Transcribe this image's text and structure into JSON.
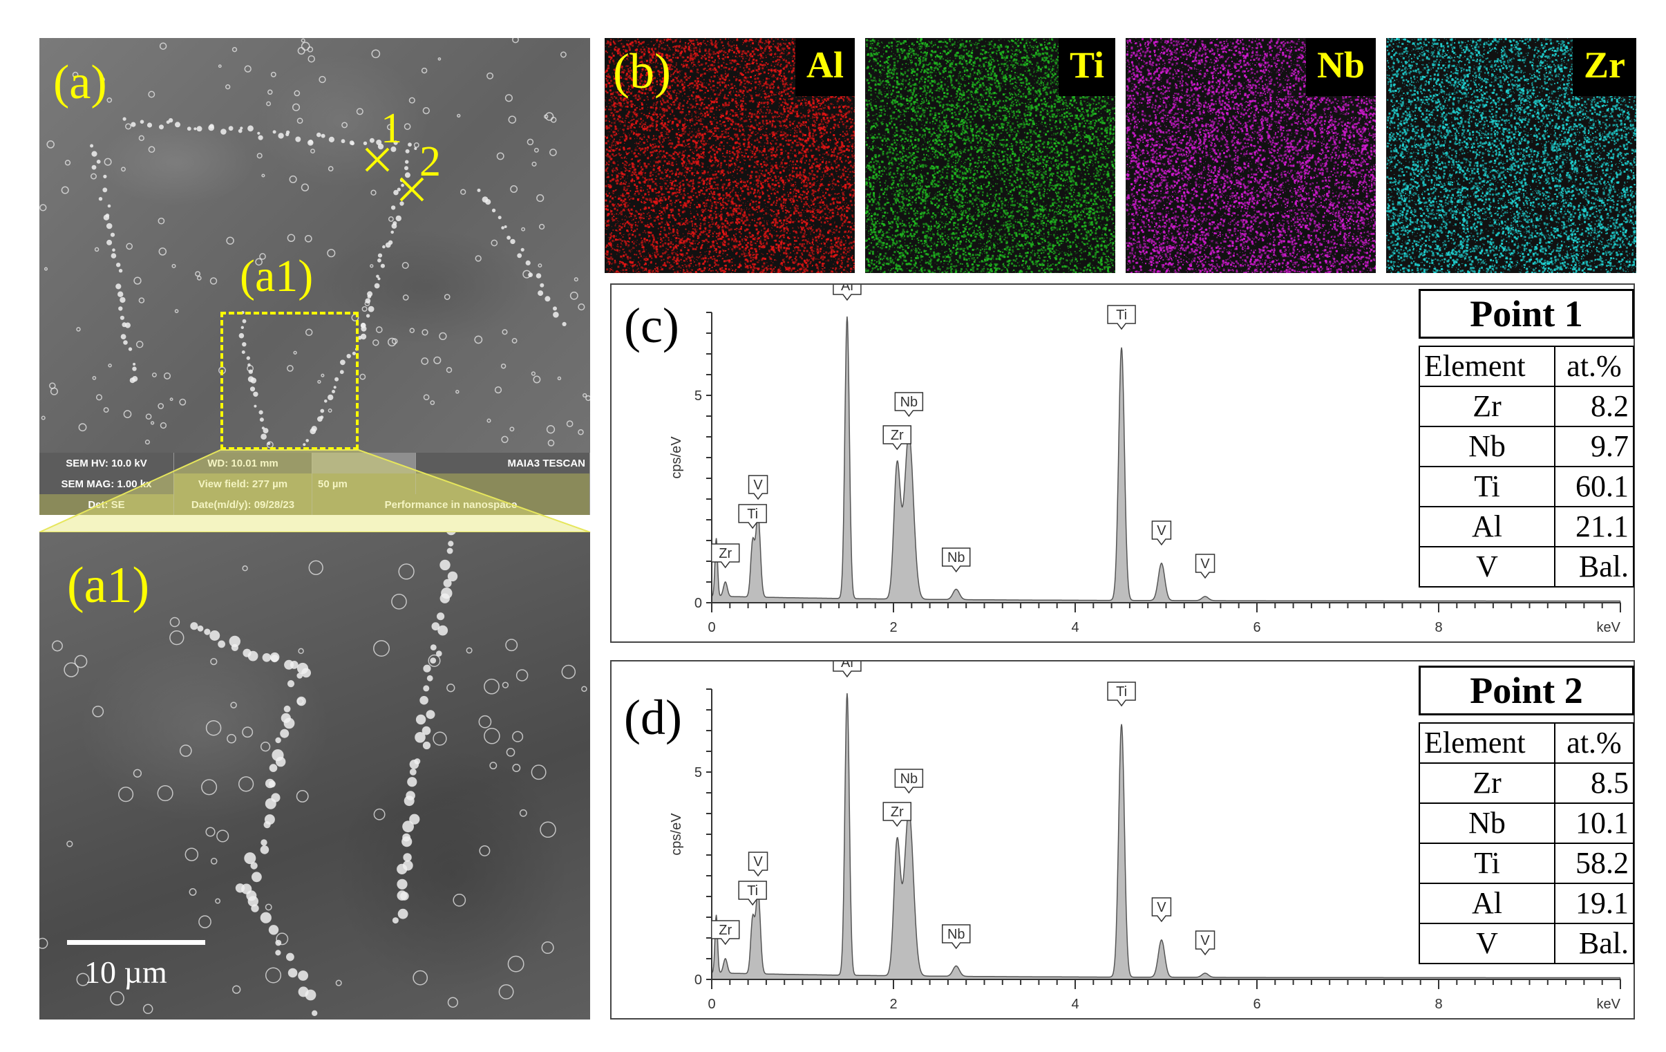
{
  "panel_a": {
    "label": "(a)",
    "inset_label": "(a1)",
    "point_markers": [
      {
        "id": "1"
      },
      {
        "id": "2"
      }
    ],
    "info_bar": {
      "row1": [
        "SEM HV: 10.0 kV",
        "WD: 10.01 mm",
        "",
        "MAIA3 TESCAN"
      ],
      "row2": [
        "SEM MAG: 1.00 kx",
        "View field: 277 µm",
        "50 µm",
        ""
      ],
      "row3": [
        "Det: SE",
        "Date(m/d/y): 09/28/23",
        "Performance in nanospace"
      ]
    }
  },
  "panel_a1": {
    "label": "(a1)",
    "scale_bar": "10 µm"
  },
  "panel_b": {
    "label": "(b)",
    "maps": [
      {
        "element": "Al",
        "color": "#e31414"
      },
      {
        "element": "Ti",
        "color": "#1fb81f"
      },
      {
        "element": "Nb",
        "color": "#d21ad2"
      },
      {
        "element": "Zr",
        "color": "#1fd2d2"
      }
    ]
  },
  "chart_data": [
    {
      "type": "area",
      "panel_label": "(c)",
      "xlabel": "keV",
      "ylabel": "cps/eV",
      "xlim": [
        0,
        10
      ],
      "ylim": [
        0,
        7
      ],
      "x_ticks": [
        0,
        2,
        4,
        6,
        8
      ],
      "y_ticks": [
        0,
        5
      ],
      "peaks": [
        {
          "label": "Zr",
          "x": 0.15,
          "y": 0.45
        },
        {
          "label": "Ti",
          "x": 0.45,
          "y": 1.4
        },
        {
          "label": "V",
          "x": 0.51,
          "y": 2.1
        },
        {
          "label": "Al",
          "x": 1.49,
          "y": 6.9
        },
        {
          "label": "Zr",
          "x": 2.04,
          "y": 3.3
        },
        {
          "label": "Nb",
          "x": 2.17,
          "y": 4.1
        },
        {
          "label": "Nb",
          "x": 2.69,
          "y": 0.35
        },
        {
          "label": "Ti",
          "x": 4.51,
          "y": 6.2
        },
        {
          "label": "V",
          "x": 4.95,
          "y": 1.0
        },
        {
          "label": "V",
          "x": 5.43,
          "y": 0.2
        }
      ],
      "table": {
        "title": "Point 1",
        "headers": [
          "Element",
          "at.%"
        ],
        "rows": [
          [
            "Zr",
            "8.2"
          ],
          [
            "Nb",
            "9.7"
          ],
          [
            "Ti",
            "60.1"
          ],
          [
            "Al",
            "21.1"
          ],
          [
            "V",
            "Bal."
          ]
        ]
      }
    },
    {
      "type": "area",
      "panel_label": "(d)",
      "xlabel": "keV",
      "ylabel": "cps/eV",
      "xlim": [
        0,
        10
      ],
      "ylim": [
        0,
        7
      ],
      "x_ticks": [
        0,
        2,
        4,
        6,
        8
      ],
      "y_ticks": [
        0,
        5
      ],
      "peaks": [
        {
          "label": "Zr",
          "x": 0.15,
          "y": 0.45
        },
        {
          "label": "Ti",
          "x": 0.45,
          "y": 1.4
        },
        {
          "label": "V",
          "x": 0.51,
          "y": 2.1
        },
        {
          "label": "Al",
          "x": 1.49,
          "y": 6.9
        },
        {
          "label": "Zr",
          "x": 2.04,
          "y": 3.3
        },
        {
          "label": "Nb",
          "x": 2.17,
          "y": 4.1
        },
        {
          "label": "Nb",
          "x": 2.69,
          "y": 0.35
        },
        {
          "label": "Ti",
          "x": 4.51,
          "y": 6.2
        },
        {
          "label": "V",
          "x": 4.95,
          "y": 1.0
        },
        {
          "label": "V",
          "x": 5.43,
          "y": 0.2
        }
      ],
      "table": {
        "title": "Point 2",
        "headers": [
          "Element",
          "at.%"
        ],
        "rows": [
          [
            "Zr",
            "8.5"
          ],
          [
            "Nb",
            "10.1"
          ],
          [
            "Ti",
            "58.2"
          ],
          [
            "Al",
            "19.1"
          ],
          [
            "V",
            "Bal."
          ]
        ]
      }
    }
  ]
}
